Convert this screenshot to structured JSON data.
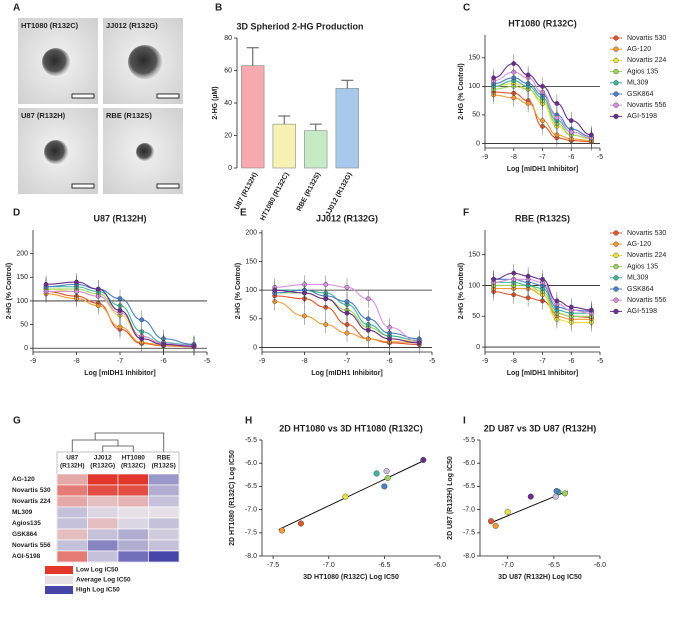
{
  "panel_labels": [
    "A",
    "B",
    "C",
    "D",
    "E",
    "F",
    "G",
    "H",
    "I"
  ],
  "images": {
    "labels": [
      "HT1080 (R132C)",
      "JJ012 (R132G)",
      "U87 (R132H)",
      "RBE (R132S)"
    ]
  },
  "chart_data": [
    {
      "type": "bar",
      "title": "3D Spheriod 2-HG Production",
      "ylabel": "2-HG (µM)",
      "categories": [
        "U87 (R132H)",
        "HT1080 (R132C)",
        "RBE (R132S)",
        "JJ012 (R132G)"
      ],
      "values": [
        63,
        27,
        23,
        49
      ],
      "errors": [
        11,
        5,
        4,
        5
      ],
      "colors": [
        "#f6a9ae",
        "#f7f1b3",
        "#c6eac6",
        "#a9c9ec"
      ],
      "ylim": [
        0,
        80
      ],
      "yticks": [
        0,
        20,
        40,
        60,
        80
      ]
    },
    {
      "type": "dose",
      "title": "HT1080 (R132C)",
      "ylabel": "2-HG (% Control)",
      "xlabel": "Log [mIDH1 Inhibitor]",
      "x": [
        -8.7,
        -8.0,
        -7.5,
        -7.0,
        -6.5,
        -6.0,
        -5.3
      ],
      "xlim": [
        -9,
        -5
      ],
      "xticks": [
        -9,
        -8,
        -7,
        -6,
        -5
      ],
      "ylim": [
        -8,
        190
      ],
      "yticks": [
        0,
        50,
        100,
        150
      ],
      "reference_lines": [
        0,
        100
      ],
      "legend": true,
      "series": [
        {
          "name": "Novartis 530",
          "color": "#e0552b",
          "values": [
            90,
            88,
            75,
            30,
            10,
            5,
            3
          ]
        },
        {
          "name": "AG-120",
          "color": "#f29a33",
          "values": [
            85,
            80,
            70,
            40,
            15,
            8,
            5
          ]
        },
        {
          "name": "Novartis 224",
          "color": "#ece23c",
          "values": [
            100,
            105,
            95,
            70,
            30,
            15,
            8
          ]
        },
        {
          "name": "Agios 135",
          "color": "#9fd45c",
          "values": [
            95,
            100,
            95,
            75,
            35,
            15,
            8
          ]
        },
        {
          "name": "ML309",
          "color": "#3db79b",
          "values": [
            100,
            110,
            100,
            80,
            40,
            20,
            10
          ]
        },
        {
          "name": "GSK864",
          "color": "#4a7fc1",
          "values": [
            105,
            115,
            105,
            85,
            50,
            25,
            12
          ]
        },
        {
          "name": "Novartis 556",
          "color": "#d890e0",
          "values": [
            110,
            125,
            115,
            90,
            45,
            20,
            10
          ]
        },
        {
          "name": "AGI-5198",
          "color": "#6a2c8e",
          "values": [
            115,
            140,
            120,
            100,
            70,
            40,
            15
          ]
        }
      ]
    },
    {
      "type": "dose",
      "title": "U87 (R132H)",
      "ylabel": "2-HG (% Control)",
      "xlabel": "Log [mIDH1 Inhibitor]",
      "x": [
        -8.7,
        -8.0,
        -7.5,
        -7.0,
        -6.5,
        -6.0,
        -5.3
      ],
      "xlim": [
        -9,
        -5
      ],
      "xticks": [
        -9,
        -8,
        -7,
        -6,
        -5
      ],
      "ylim": [
        -8,
        250
      ],
      "yticks": [
        0,
        50,
        100,
        150,
        200
      ],
      "reference_lines": [
        0,
        100
      ],
      "legend": false,
      "series": [
        {
          "name": "Novartis 530",
          "color": "#e0552b",
          "values": [
            120,
            110,
            95,
            40,
            10,
            5,
            3
          ]
        },
        {
          "name": "AG-120",
          "color": "#f29a33",
          "values": [
            115,
            105,
            90,
            45,
            12,
            6,
            4
          ]
        },
        {
          "name": "Novartis 224",
          "color": "#ece23c",
          "values": [
            125,
            120,
            110,
            70,
            20,
            8,
            5
          ]
        },
        {
          "name": "Agios 135",
          "color": "#9fd45c",
          "values": [
            125,
            125,
            115,
            80,
            25,
            10,
            5
          ]
        },
        {
          "name": "ML309",
          "color": "#3db79b",
          "values": [
            130,
            130,
            120,
            90,
            35,
            12,
            6
          ]
        },
        {
          "name": "GSK864",
          "color": "#4a7fc1",
          "values": [
            130,
            135,
            125,
            105,
            60,
            20,
            8
          ]
        },
        {
          "name": "Novartis 556",
          "color": "#d890e0",
          "values": [
            120,
            120,
            110,
            75,
            25,
            10,
            5
          ]
        },
        {
          "name": "AGI-5198",
          "color": "#6a2c8e",
          "values": [
            135,
            140,
            125,
            80,
            20,
            8,
            4
          ]
        }
      ]
    },
    {
      "type": "dose",
      "title": "JJ012 (R132G)",
      "ylabel": "2-HG (% Control)",
      "xlabel": "Log [mIDH1 Inhibitor]",
      "x": [
        -8.7,
        -8.0,
        -7.5,
        -7.0,
        -6.5,
        -6.0,
        -5.3
      ],
      "xlim": [
        -9,
        -5
      ],
      "xticks": [
        -9,
        -8,
        -7,
        -6,
        -5
      ],
      "ylim": [
        -8,
        205
      ],
      "yticks": [
        0,
        50,
        100,
        150,
        200
      ],
      "reference_lines": [
        0,
        100
      ],
      "legend": false,
      "series": [
        {
          "name": "Novartis 530",
          "color": "#e0552b",
          "values": [
            90,
            85,
            70,
            40,
            15,
            8,
            5
          ]
        },
        {
          "name": "AG-120",
          "color": "#f29a33",
          "values": [
            80,
            55,
            40,
            25,
            15,
            10,
            8
          ]
        },
        {
          "name": "Novartis 224",
          "color": "#ece23c",
          "values": [
            100,
            95,
            85,
            60,
            30,
            15,
            10
          ]
        },
        {
          "name": "Agios 135",
          "color": "#9fd45c",
          "values": [
            95,
            95,
            85,
            65,
            35,
            20,
            12
          ]
        },
        {
          "name": "ML309",
          "color": "#3db79b",
          "values": [
            100,
            100,
            95,
            75,
            40,
            20,
            12
          ]
        },
        {
          "name": "GSK864",
          "color": "#4a7fc1",
          "values": [
            95,
            100,
            90,
            80,
            50,
            25,
            15
          ]
        },
        {
          "name": "Novartis 556",
          "color": "#d890e0",
          "values": [
            105,
            110,
            110,
            105,
            85,
            35,
            10
          ]
        },
        {
          "name": "AGI-5198",
          "color": "#6a2c8e",
          "values": [
            100,
            95,
            85,
            60,
            30,
            15,
            8
          ]
        }
      ]
    },
    {
      "type": "dose",
      "title": "RBE (R132S)",
      "ylabel": "2-HG (% Control)",
      "xlabel": "Log [mIDH1 Inhibitor]",
      "x": [
        -8.7,
        -8.0,
        -7.5,
        -7.0,
        -6.5,
        -6.0,
        -5.3
      ],
      "xlim": [
        -9,
        -5
      ],
      "xticks": [
        -9,
        -8,
        -7,
        -6,
        -5
      ],
      "ylim": [
        -8,
        190
      ],
      "yticks": [
        0,
        50,
        100,
        150
      ],
      "reference_lines": [
        0,
        100
      ],
      "legend": true,
      "series": [
        {
          "name": "Novartis 530",
          "color": "#e0552b",
          "values": [
            90,
            85,
            80,
            75,
            55,
            50,
            48
          ]
        },
        {
          "name": "AG-120",
          "color": "#f29a33",
          "values": [
            95,
            95,
            95,
            85,
            50,
            45,
            45
          ]
        },
        {
          "name": "Novartis 224",
          "color": "#ece23c",
          "values": [
            100,
            100,
            100,
            85,
            45,
            40,
            40
          ]
        },
        {
          "name": "Agios 135",
          "color": "#9fd45c",
          "values": [
            100,
            100,
            100,
            90,
            55,
            50,
            50
          ]
        },
        {
          "name": "ML309",
          "color": "#3db79b",
          "values": [
            105,
            105,
            100,
            95,
            60,
            55,
            55
          ]
        },
        {
          "name": "GSK864",
          "color": "#4a7fc1",
          "values": [
            110,
            110,
            105,
            100,
            65,
            60,
            58
          ]
        },
        {
          "name": "Novartis 556",
          "color": "#d890e0",
          "values": [
            105,
            110,
            110,
            105,
            70,
            60,
            55
          ]
        },
        {
          "name": "AGI-5198",
          "color": "#6a2c8e",
          "values": [
            110,
            120,
            115,
            110,
            75,
            65,
            60
          ]
        }
      ]
    },
    {
      "type": "heatmap",
      "columns": [
        [
          "U87",
          "(R132H)"
        ],
        [
          "JJ012",
          "(R132G)"
        ],
        [
          "HT1080",
          "(R132C)"
        ],
        [
          "RBE",
          "(R132S)"
        ]
      ],
      "rows": [
        "AG-120",
        "Novartis 530",
        "Novartis 224",
        "ML309",
        "Agios135",
        "GSK864",
        "Novartis 556",
        "AGI-5198"
      ],
      "values": [
        [
          -7.0,
          -7.6,
          -7.5,
          -6.4
        ],
        [
          -7.2,
          -7.4,
          -7.4,
          -6.5
        ],
        [
          -7.0,
          -6.9,
          -6.95,
          -6.6
        ],
        [
          -6.6,
          -6.7,
          -6.75,
          -6.75
        ],
        [
          -6.6,
          -6.9,
          -6.7,
          -6.6
        ],
        [
          -6.9,
          -6.6,
          -6.5,
          -6.65
        ],
        [
          -6.6,
          -6.3,
          -6.5,
          -6.6
        ],
        [
          -7.2,
          -6.6,
          -6.2,
          -6.0
        ]
      ],
      "vlim": [
        -7.5,
        -6.0
      ],
      "legend": [
        {
          "label": "Low Log IC50",
          "color": "#e2372b"
        },
        {
          "label": "Average Log IC50",
          "color": "#e6e0e6"
        },
        {
          "label": "High Log IC50",
          "color": "#4646a8"
        }
      ]
    },
    {
      "type": "scatter",
      "title": "2D HT1080 vs 3D HT1080 (R132C)",
      "xlabel": "3D HT1080 (R132C) Log IC50",
      "ylabel": "2D HT1080 (R132C) Log IC50",
      "x": [
        -7.25,
        -7.42,
        -6.85,
        -6.47,
        -6.57,
        -6.5,
        -6.48,
        -6.15
      ],
      "y": [
        -7.3,
        -7.45,
        -6.72,
        -6.32,
        -6.22,
        -6.5,
        -6.17,
        -5.93
      ],
      "colors": [
        "#e0552b",
        "#f29a33",
        "#ece23c",
        "#9fd45c",
        "#3db79b",
        "#4a7fc1",
        "#c9c0d8",
        "#6a2c8e"
      ],
      "trendline": {
        "x": [
          -7.45,
          -6.15
        ],
        "y": [
          -7.43,
          -5.95
        ]
      },
      "xlim": [
        -7.6,
        -6.0
      ],
      "xticks": [
        -7.5,
        {
          "value": -7,
          "label": "-7.0"
        },
        -6.5,
        {
          "value": -6,
          "label": "-6.0"
        }
      ],
      "ylim": [
        -8,
        -5.5
      ],
      "yticks": [
        {
          "value": -8,
          "label": "-8.0"
        },
        -7.5,
        {
          "value": -7,
          "label": "-7.0"
        },
        -6.5,
        {
          "value": -6,
          "label": "-6.0"
        },
        -5.5
      ]
    },
    {
      "type": "scatter",
      "title": "2D U87 vs 3D U87 (R132H)",
      "xlabel": "3D U87 (R132H) Log IC50",
      "ylabel": "2D U87 (R132H) Log IC50",
      "x": [
        -7.18,
        -7.13,
        -7.0,
        -6.38,
        -6.45,
        -6.47,
        -6.48,
        -6.75
      ],
      "y": [
        -7.25,
        -7.35,
        -7.05,
        -6.65,
        -6.62,
        -6.6,
        -6.72,
        -6.72
      ],
      "colors": [
        "#e0552b",
        "#f29a33",
        "#ece23c",
        "#9fd45c",
        "#3db79b",
        "#4a7fc1",
        "#c9c0d8",
        "#6a2c8e"
      ],
      "trendline": {
        "x": [
          -7.2,
          -6.35
        ],
        "y": [
          -7.3,
          -6.6
        ]
      },
      "xlim": [
        -7.3,
        -6.0
      ],
      "xticks": [
        {
          "value": -7,
          "label": "-7.0"
        },
        -6.5,
        {
          "value": -6,
          "label": "-6.0"
        }
      ],
      "ylim": [
        -8,
        -5.5
      ],
      "yticks": [
        {
          "value": -8,
          "label": "-8.0"
        },
        -7.5,
        {
          "value": -7,
          "label": "-7.0"
        },
        -6.5,
        {
          "value": -6,
          "label": "-6.0"
        },
        -5.5
      ]
    }
  ]
}
